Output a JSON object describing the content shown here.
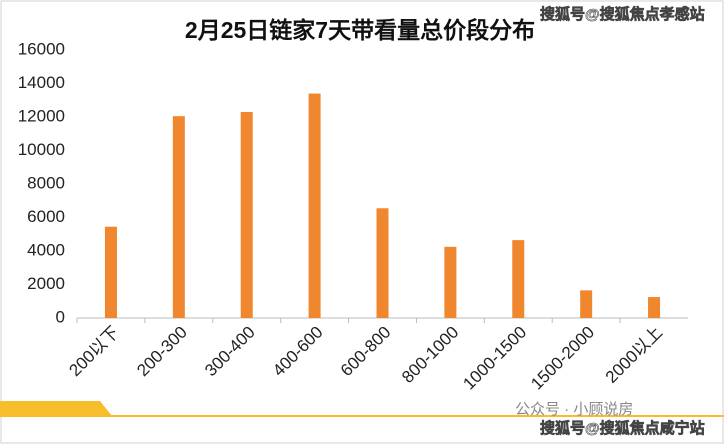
{
  "chart_data": {
    "type": "bar",
    "title": "2月25日链家7天带看量总价段分布",
    "categories": [
      "200以下",
      "200-300",
      "300-400",
      "400-600",
      "600-800",
      "800-1000",
      "1000-1500",
      "1500-2000",
      "2000以上"
    ],
    "values": [
      5450,
      12050,
      12300,
      13400,
      6550,
      4250,
      4650,
      1650,
      1250
    ],
    "color": "#f0862d",
    "ylim": [
      0,
      16000
    ],
    "yticks": [
      0,
      2000,
      4000,
      6000,
      8000,
      10000,
      12000,
      14000,
      16000
    ],
    "grid": false
  },
  "watermarks": [
    "搜狐号@搜狐焦点孝感站",
    "公众号 · 小顾说房",
    "搜狐号@搜狐焦点咸宁站"
  ]
}
